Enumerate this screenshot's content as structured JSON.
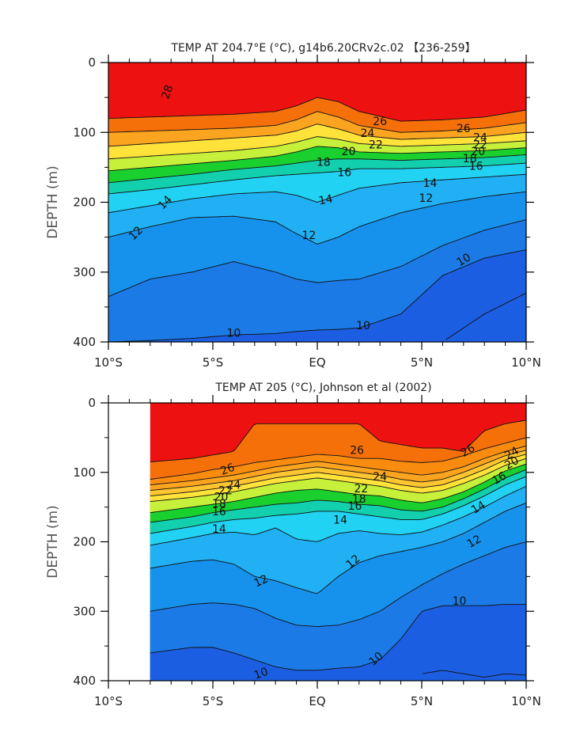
{
  "chart_data": [
    {
      "type": "contour",
      "title": "TEMP AT 204.7°E (°C), g14b6.20CRv2c.02 【236-259】",
      "ylabel": "DEPTH (m)",
      "xlabel": "",
      "xlim": [
        -10,
        10
      ],
      "ylim": [
        400,
        0
      ],
      "y_inverted": true,
      "x_ticks": [
        "10°S",
        "5°S",
        "EQ",
        "5°N",
        "10°N"
      ],
      "y_ticks": [
        "0",
        "100",
        "200",
        "300",
        "400"
      ],
      "contour_interval": 1,
      "data_coverage": [
        -10,
        10
      ],
      "x": [
        -10,
        -8,
        -6,
        -4,
        -2,
        -1,
        0,
        1,
        2,
        4,
        6,
        8,
        10
      ],
      "isotherms": [
        {
          "t": 28,
          "depth": [
            80,
            78,
            76,
            74,
            70,
            62,
            50,
            56,
            70,
            84,
            82,
            78,
            68
          ]
        },
        {
          "t": 26,
          "depth": [
            100,
            98,
            96,
            94,
            90,
            82,
            70,
            78,
            90,
            100,
            98,
            94,
            86
          ]
        },
        {
          "t": 24,
          "depth": [
            120,
            116,
            112,
            108,
            104,
            98,
            88,
            95,
            104,
            110,
            108,
            106,
            100
          ]
        },
        {
          "t": 22,
          "depth": [
            138,
            134,
            130,
            126,
            120,
            114,
            106,
            110,
            116,
            120,
            118,
            116,
            112
          ]
        },
        {
          "t": 20,
          "depth": [
            155,
            150,
            145,
            140,
            134,
            128,
            120,
            122,
            128,
            130,
            128,
            126,
            122
          ]
        },
        {
          "t": 18,
          "depth": [
            172,
            166,
            160,
            153,
            148,
            144,
            140,
            138,
            138,
            140,
            138,
            136,
            132
          ]
        },
        {
          "t": 16,
          "depth": [
            188,
            182,
            175,
            168,
            162,
            160,
            158,
            156,
            152,
            152,
            150,
            148,
            144
          ]
        },
        {
          "t": 14,
          "depth": [
            215,
            205,
            195,
            188,
            185,
            190,
            200,
            190,
            180,
            172,
            168,
            164,
            160
          ]
        },
        {
          "t": 12,
          "depth": [
            250,
            235,
            222,
            220,
            228,
            245,
            260,
            250,
            235,
            215,
            202,
            192,
            185
          ]
        },
        {
          "t": 11,
          "depth": [
            335,
            310,
            300,
            285,
            300,
            310,
            315,
            312,
            310,
            292,
            262,
            240,
            225
          ]
        },
        {
          "t": 10,
          "depth": [
            400,
            398,
            395,
            390,
            388,
            385,
            383,
            382,
            380,
            360,
            305,
            280,
            268
          ]
        },
        {
          "t": 9,
          "depth": [
            null,
            null,
            null,
            null,
            null,
            null,
            null,
            null,
            null,
            null,
            400,
            360,
            330
          ]
        }
      ],
      "contour_labels": [
        {
          "value": "28",
          "x": -7.2,
          "depth": 42,
          "angle": -70
        },
        {
          "value": "26",
          "x": 3.0,
          "depth": 84,
          "angle": 0
        },
        {
          "value": "26",
          "x": 7.0,
          "depth": 94,
          "angle": 0
        },
        {
          "value": "24",
          "x": 2.4,
          "depth": 101,
          "angle": 0
        },
        {
          "value": "24",
          "x": 7.8,
          "depth": 107,
          "angle": 0
        },
        {
          "value": "22",
          "x": 2.8,
          "depth": 117,
          "angle": 0
        },
        {
          "value": "22",
          "x": 7.8,
          "depth": 117,
          "angle": 0
        },
        {
          "value": "20",
          "x": 1.5,
          "depth": 127,
          "angle": 0
        },
        {
          "value": "20",
          "x": 7.7,
          "depth": 127,
          "angle": 0
        },
        {
          "value": "18",
          "x": 0.3,
          "depth": 142,
          "angle": 0
        },
        {
          "value": "18",
          "x": 7.3,
          "depth": 137,
          "angle": 0
        },
        {
          "value": "16",
          "x": 1.3,
          "depth": 157,
          "angle": 0
        },
        {
          "value": "16",
          "x": 7.6,
          "depth": 148,
          "angle": 0
        },
        {
          "value": "14",
          "x": 5.4,
          "depth": 172,
          "angle": 0
        },
        {
          "value": "14",
          "x": 0.4,
          "depth": 196,
          "angle": -10
        },
        {
          "value": "14",
          "x": -7.3,
          "depth": 200,
          "angle": -45
        },
        {
          "value": "12",
          "x": 5.2,
          "depth": 194,
          "angle": 0
        },
        {
          "value": "12",
          "x": -0.4,
          "depth": 247,
          "angle": 0
        },
        {
          "value": "12",
          "x": -8.7,
          "depth": 244,
          "angle": -45
        },
        {
          "value": "10",
          "x": 7.0,
          "depth": 282,
          "angle": -30
        },
        {
          "value": "10",
          "x": -4.0,
          "depth": 387,
          "angle": 0
        },
        {
          "value": "10",
          "x": 2.2,
          "depth": 376,
          "angle": 0
        }
      ]
    },
    {
      "type": "contour",
      "title": "TEMP AT 205 (°C), Johnson et al (2002)",
      "ylabel": "DEPTH (m)",
      "xlabel": "",
      "xlim": [
        -10,
        10
      ],
      "ylim": [
        400,
        0
      ],
      "y_inverted": true,
      "x_ticks": [
        "10°S",
        "5°S",
        "EQ",
        "5°N",
        "10°N"
      ],
      "y_ticks": [
        "0",
        "100",
        "200",
        "300",
        "400"
      ],
      "contour_interval": 1,
      "data_coverage": [
        -8,
        10
      ],
      "x": [
        -8,
        -6,
        -5,
        -4,
        -3,
        -2,
        -1,
        0,
        1,
        2,
        3,
        4,
        5,
        6,
        7,
        8,
        9,
        10
      ],
      "isotherms": [
        {
          "t": 28,
          "depth": [
            85,
            80,
            75,
            70,
            30,
            30,
            30,
            30,
            30,
            30,
            55,
            60,
            65,
            65,
            70,
            40,
            30,
            25
          ]
        },
        {
          "t": 27,
          "depth": [
            110,
            102,
            96,
            92,
            86,
            82,
            78,
            74,
            76,
            80,
            80,
            84,
            86,
            84,
            76,
            66,
            58,
            50
          ]
        },
        {
          "t": 26,
          "depth": [
            118,
            112,
            108,
            104,
            98,
            92,
            88,
            84,
            88,
            92,
            96,
            100,
            104,
            100,
            92,
            80,
            70,
            62
          ]
        },
        {
          "t": 25,
          "depth": [
            126,
            120,
            116,
            112,
            106,
            100,
            96,
            92,
            96,
            100,
            104,
            110,
            114,
            110,
            100,
            88,
            76,
            68
          ]
        },
        {
          "t": 24,
          "depth": [
            134,
            128,
            124,
            120,
            114,
            108,
            104,
            100,
            104,
            108,
            112,
            118,
            122,
            118,
            108,
            96,
            82,
            74
          ]
        },
        {
          "t": 22,
          "depth": [
            142,
            136,
            132,
            128,
            122,
            116,
            112,
            108,
            112,
            116,
            120,
            126,
            130,
            126,
            116,
            104,
            90,
            80
          ]
        },
        {
          "t": 20,
          "depth": [
            158,
            150,
            146,
            142,
            136,
            130,
            126,
            124,
            128,
            132,
            134,
            140,
            144,
            138,
            128,
            114,
            98,
            88
          ]
        },
        {
          "t": 18,
          "depth": [
            172,
            164,
            158,
            154,
            150,
            146,
            144,
            140,
            142,
            146,
            148,
            154,
            156,
            150,
            138,
            124,
            108,
            96
          ]
        },
        {
          "t": 16,
          "depth": [
            188,
            178,
            172,
            168,
            166,
            162,
            160,
            156,
            156,
            160,
            164,
            168,
            168,
            160,
            148,
            134,
            118,
            106
          ]
        },
        {
          "t": 14,
          "depth": [
            205,
            194,
            188,
            186,
            190,
            180,
            196,
            200,
            188,
            184,
            188,
            190,
            186,
            176,
            164,
            150,
            134,
            120
          ]
        },
        {
          "t": 12,
          "depth": [
            238,
            228,
            226,
            232,
            250,
            256,
            266,
            275,
            250,
            230,
            220,
            214,
            208,
            200,
            188,
            172,
            156,
            144
          ]
        },
        {
          "t": 11,
          "depth": [
            300,
            290,
            288,
            290,
            296,
            310,
            320,
            322,
            320,
            312,
            300,
            280,
            262,
            246,
            232,
            220,
            208,
            200
          ]
        },
        {
          "t": 10,
          "depth": [
            360,
            352,
            352,
            360,
            370,
            380,
            385,
            385,
            382,
            380,
            370,
            340,
            300,
            292,
            292,
            292,
            290,
            290
          ]
        },
        {
          "t": 9,
          "depth": [
            null,
            null,
            null,
            null,
            null,
            null,
            null,
            null,
            null,
            null,
            null,
            null,
            390,
            385,
            390,
            395,
            390,
            392
          ]
        }
      ],
      "contour_labels": [
        {
          "value": "26",
          "x": -4.3,
          "depth": 95,
          "angle": -20
        },
        {
          "value": "26",
          "x": 1.9,
          "depth": 68,
          "angle": 0
        },
        {
          "value": "26",
          "x": 7.2,
          "depth": 68,
          "angle": -30
        },
        {
          "value": "24",
          "x": -4.0,
          "depth": 118,
          "angle": 0
        },
        {
          "value": "24",
          "x": 3.0,
          "depth": 106,
          "angle": 0
        },
        {
          "value": "24",
          "x": 9.3,
          "depth": 72,
          "angle": -30
        },
        {
          "value": "22",
          "x": -4.4,
          "depth": 126,
          "angle": 0
        },
        {
          "value": "22",
          "x": 2.1,
          "depth": 123,
          "angle": 0
        },
        {
          "value": "20",
          "x": -4.6,
          "depth": 135,
          "angle": 0
        },
        {
          "value": "20",
          "x": 9.3,
          "depth": 86,
          "angle": -30
        },
        {
          "value": "18",
          "x": -4.7,
          "depth": 145,
          "angle": 0
        },
        {
          "value": "18",
          "x": 2.0,
          "depth": 138,
          "angle": 0
        },
        {
          "value": "16",
          "x": -4.7,
          "depth": 156,
          "angle": 0
        },
        {
          "value": "16",
          "x": 1.8,
          "depth": 148,
          "angle": 0
        },
        {
          "value": "16",
          "x": 8.7,
          "depth": 108,
          "angle": -30
        },
        {
          "value": "14",
          "x": -4.7,
          "depth": 181,
          "angle": 0
        },
        {
          "value": "14",
          "x": 1.1,
          "depth": 168,
          "angle": 0
        },
        {
          "value": "14",
          "x": 7.7,
          "depth": 150,
          "angle": -30
        },
        {
          "value": "12",
          "x": -2.7,
          "depth": 256,
          "angle": -25
        },
        {
          "value": "12",
          "x": 1.7,
          "depth": 228,
          "angle": -40
        },
        {
          "value": "12",
          "x": 7.5,
          "depth": 199,
          "angle": -30
        },
        {
          "value": "10",
          "x": 6.8,
          "depth": 285,
          "angle": 0
        },
        {
          "value": "10",
          "x": 2.8,
          "depth": 368,
          "angle": -40
        },
        {
          "value": "10",
          "x": -2.7,
          "depth": 389,
          "angle": -20
        }
      ]
    }
  ]
}
